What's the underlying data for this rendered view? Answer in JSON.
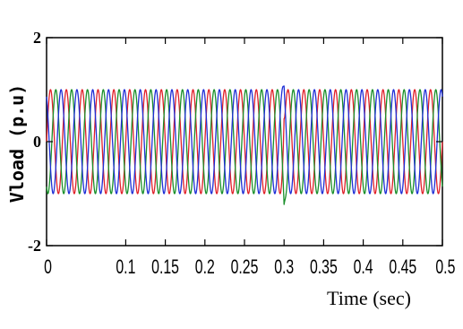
{
  "chart_data": {
    "type": "line",
    "title": "",
    "xlabel": "Time (sec)",
    "ylabel": "Vload (p.u)",
    "xlim": [
      0,
      0.5
    ],
    "ylim": [
      -2,
      2
    ],
    "xticks": [
      "0",
      "0.1",
      "0.15",
      "0.2",
      "0.25",
      "0.3",
      "0.35",
      "0.4",
      "0.45",
      "0.5"
    ],
    "xtick_values": [
      0,
      0.1,
      0.15,
      0.2,
      0.25,
      0.3,
      0.35,
      0.4,
      0.45,
      0.5
    ],
    "yticks": [
      "2",
      "0",
      "-2"
    ],
    "ytick_values": [
      2,
      0,
      -2
    ],
    "grid": false,
    "legend": "none",
    "frequency_hz": 50,
    "amplitude_pu": 1,
    "disturbance_time_sec": 0.3,
    "series": [
      {
        "color": "#e0202a",
        "phase_deg": 0
      },
      {
        "color": "#1a8f2a",
        "phase_deg": -120
      },
      {
        "color": "#1f2fd6",
        "phase_deg": 120
      }
    ]
  }
}
